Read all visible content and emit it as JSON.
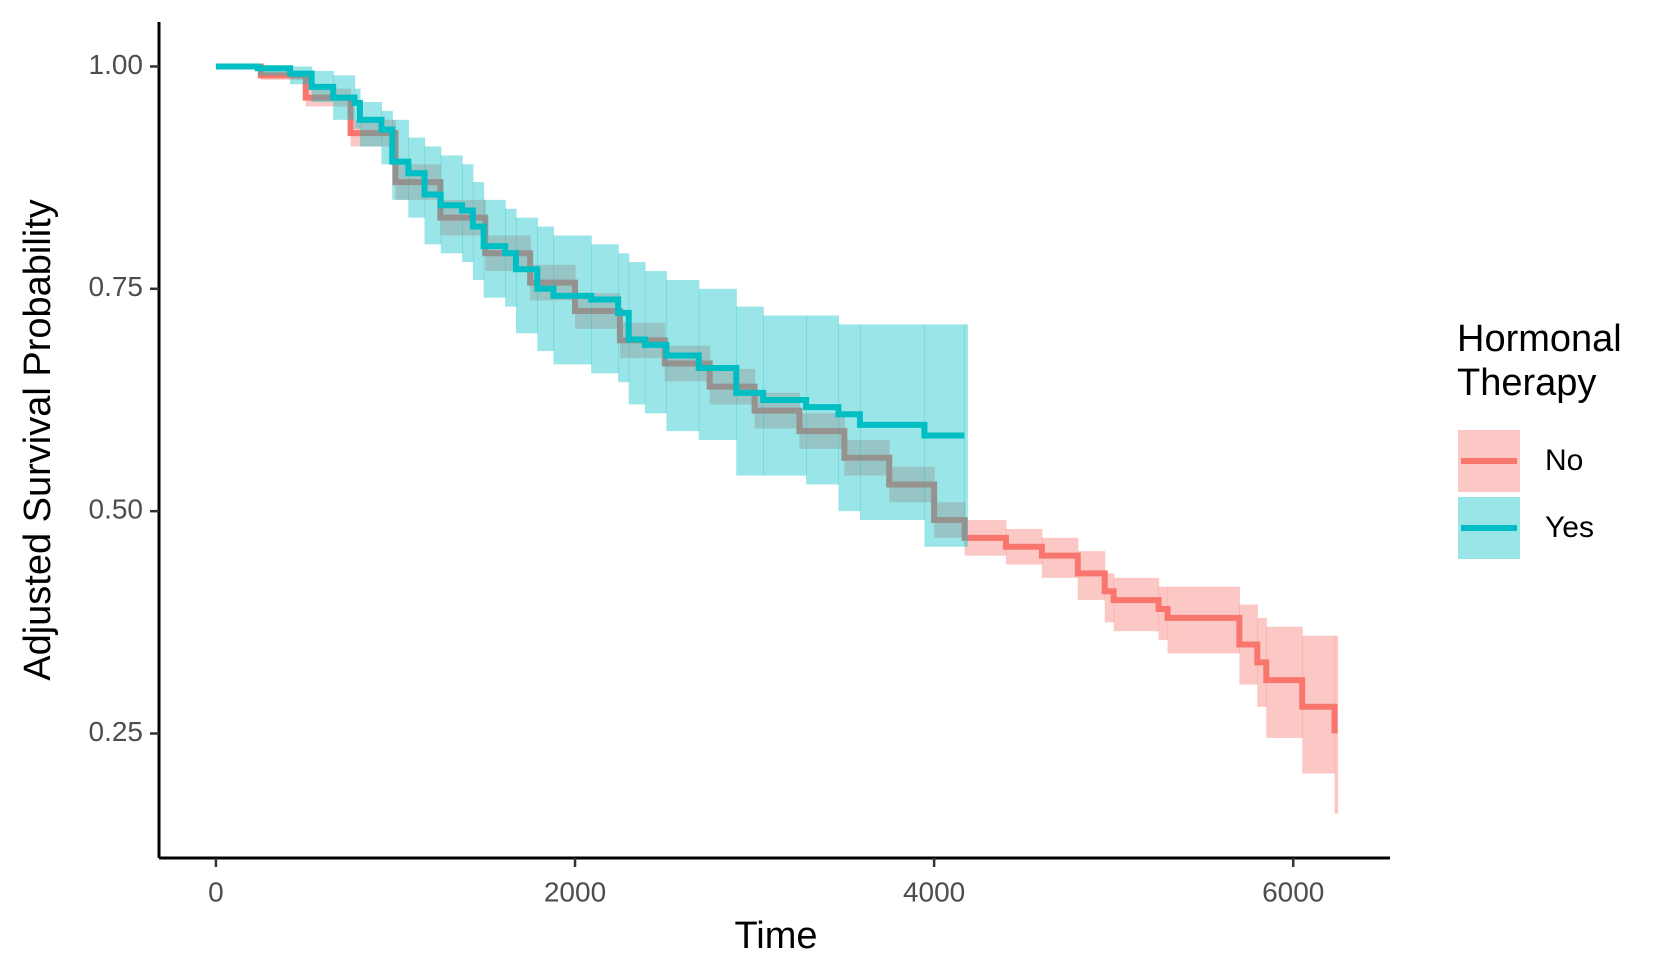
{
  "chart_data": {
    "type": "step",
    "x_label": "Time",
    "y_label": "Adjusted Survival Probability",
    "legend_title": "Hormonal Therapy",
    "xlim": [
      -317,
      6539
    ],
    "xticks": [
      0,
      2000,
      4000,
      6000
    ],
    "ylim": [
      0.11,
      1.05
    ],
    "yticks": [
      {
        "value": 0.25,
        "label": "0.25"
      },
      {
        "value": 0.5,
        "label": "0.50"
      },
      {
        "value": 0.75,
        "label": "0.75"
      },
      {
        "value": 1,
        "label": "1.00"
      }
    ],
    "series": [
      {
        "name": "No",
        "color": "#F8766D",
        "x": [
          0,
          250,
          500,
          750,
          1000,
          1250,
          1500,
          1750,
          2000,
          2250,
          2500,
          2750,
          3000,
          3250,
          3500,
          3750,
          4000,
          4170,
          4400,
          4600,
          4800,
          4950,
          5000,
          5250,
          5300,
          5700,
          5800,
          5850,
          6050,
          6230
        ],
        "values": [
          1.0,
          0.99,
          0.965,
          0.925,
          0.87,
          0.83,
          0.79,
          0.757,
          0.725,
          0.692,
          0.666,
          0.64,
          0.613,
          0.59,
          0.56,
          0.53,
          0.49,
          0.47,
          0.46,
          0.45,
          0.43,
          0.41,
          0.4,
          0.39,
          0.38,
          0.35,
          0.33,
          0.31,
          0.28,
          0.25
        ],
        "lower": [
          1.0,
          0.985,
          0.955,
          0.91,
          0.85,
          0.81,
          0.77,
          0.737,
          0.705,
          0.672,
          0.646,
          0.62,
          0.593,
          0.57,
          0.54,
          0.51,
          0.47,
          0.45,
          0.44,
          0.425,
          0.4,
          0.375,
          0.365,
          0.355,
          0.34,
          0.305,
          0.28,
          0.245,
          0.205,
          0.16
        ],
        "upper": [
          1.0,
          0.995,
          0.975,
          0.94,
          0.89,
          0.85,
          0.81,
          0.777,
          0.745,
          0.712,
          0.686,
          0.66,
          0.633,
          0.61,
          0.58,
          0.55,
          0.51,
          0.49,
          0.48,
          0.47,
          0.455,
          0.43,
          0.425,
          0.415,
          0.415,
          0.395,
          0.38,
          0.37,
          0.36,
          0.36
        ]
      },
      {
        "name": "Yes",
        "color": "#00BFC4",
        "x": [
          0,
          234,
          413,
          533,
          653,
          772,
          802,
          922,
          982,
          1072,
          1162,
          1252,
          1371,
          1431,
          1491,
          1611,
          1671,
          1790,
          1880,
          2090,
          2240,
          2299,
          2389,
          2509,
          2689,
          2898,
          3048,
          3287,
          3467,
          3587,
          3946,
          4168
        ],
        "values": [
          1.0,
          0.998,
          0.992,
          0.977,
          0.965,
          0.959,
          0.94,
          0.929,
          0.893,
          0.88,
          0.856,
          0.844,
          0.838,
          0.82,
          0.798,
          0.79,
          0.772,
          0.75,
          0.742,
          0.738,
          0.723,
          0.693,
          0.687,
          0.675,
          0.661,
          0.633,
          0.625,
          0.617,
          0.609,
          0.597,
          0.585,
          0.585
        ],
        "lower": [
          1.0,
          0.99,
          0.98,
          0.96,
          0.94,
          0.93,
          0.91,
          0.89,
          0.85,
          0.83,
          0.8,
          0.79,
          0.78,
          0.76,
          0.74,
          0.73,
          0.7,
          0.68,
          0.665,
          0.655,
          0.645,
          0.62,
          0.61,
          0.59,
          0.58,
          0.54,
          0.54,
          0.53,
          0.5,
          0.49,
          0.46,
          0.46
        ],
        "upper": [
          1.0,
          1.0,
          1.0,
          0.995,
          0.99,
          0.975,
          0.96,
          0.95,
          0.94,
          0.92,
          0.91,
          0.9,
          0.89,
          0.87,
          0.85,
          0.84,
          0.83,
          0.82,
          0.81,
          0.8,
          0.79,
          0.78,
          0.77,
          0.76,
          0.75,
          0.73,
          0.72,
          0.72,
          0.71,
          0.71,
          0.71,
          0.71
        ]
      }
    ]
  }
}
